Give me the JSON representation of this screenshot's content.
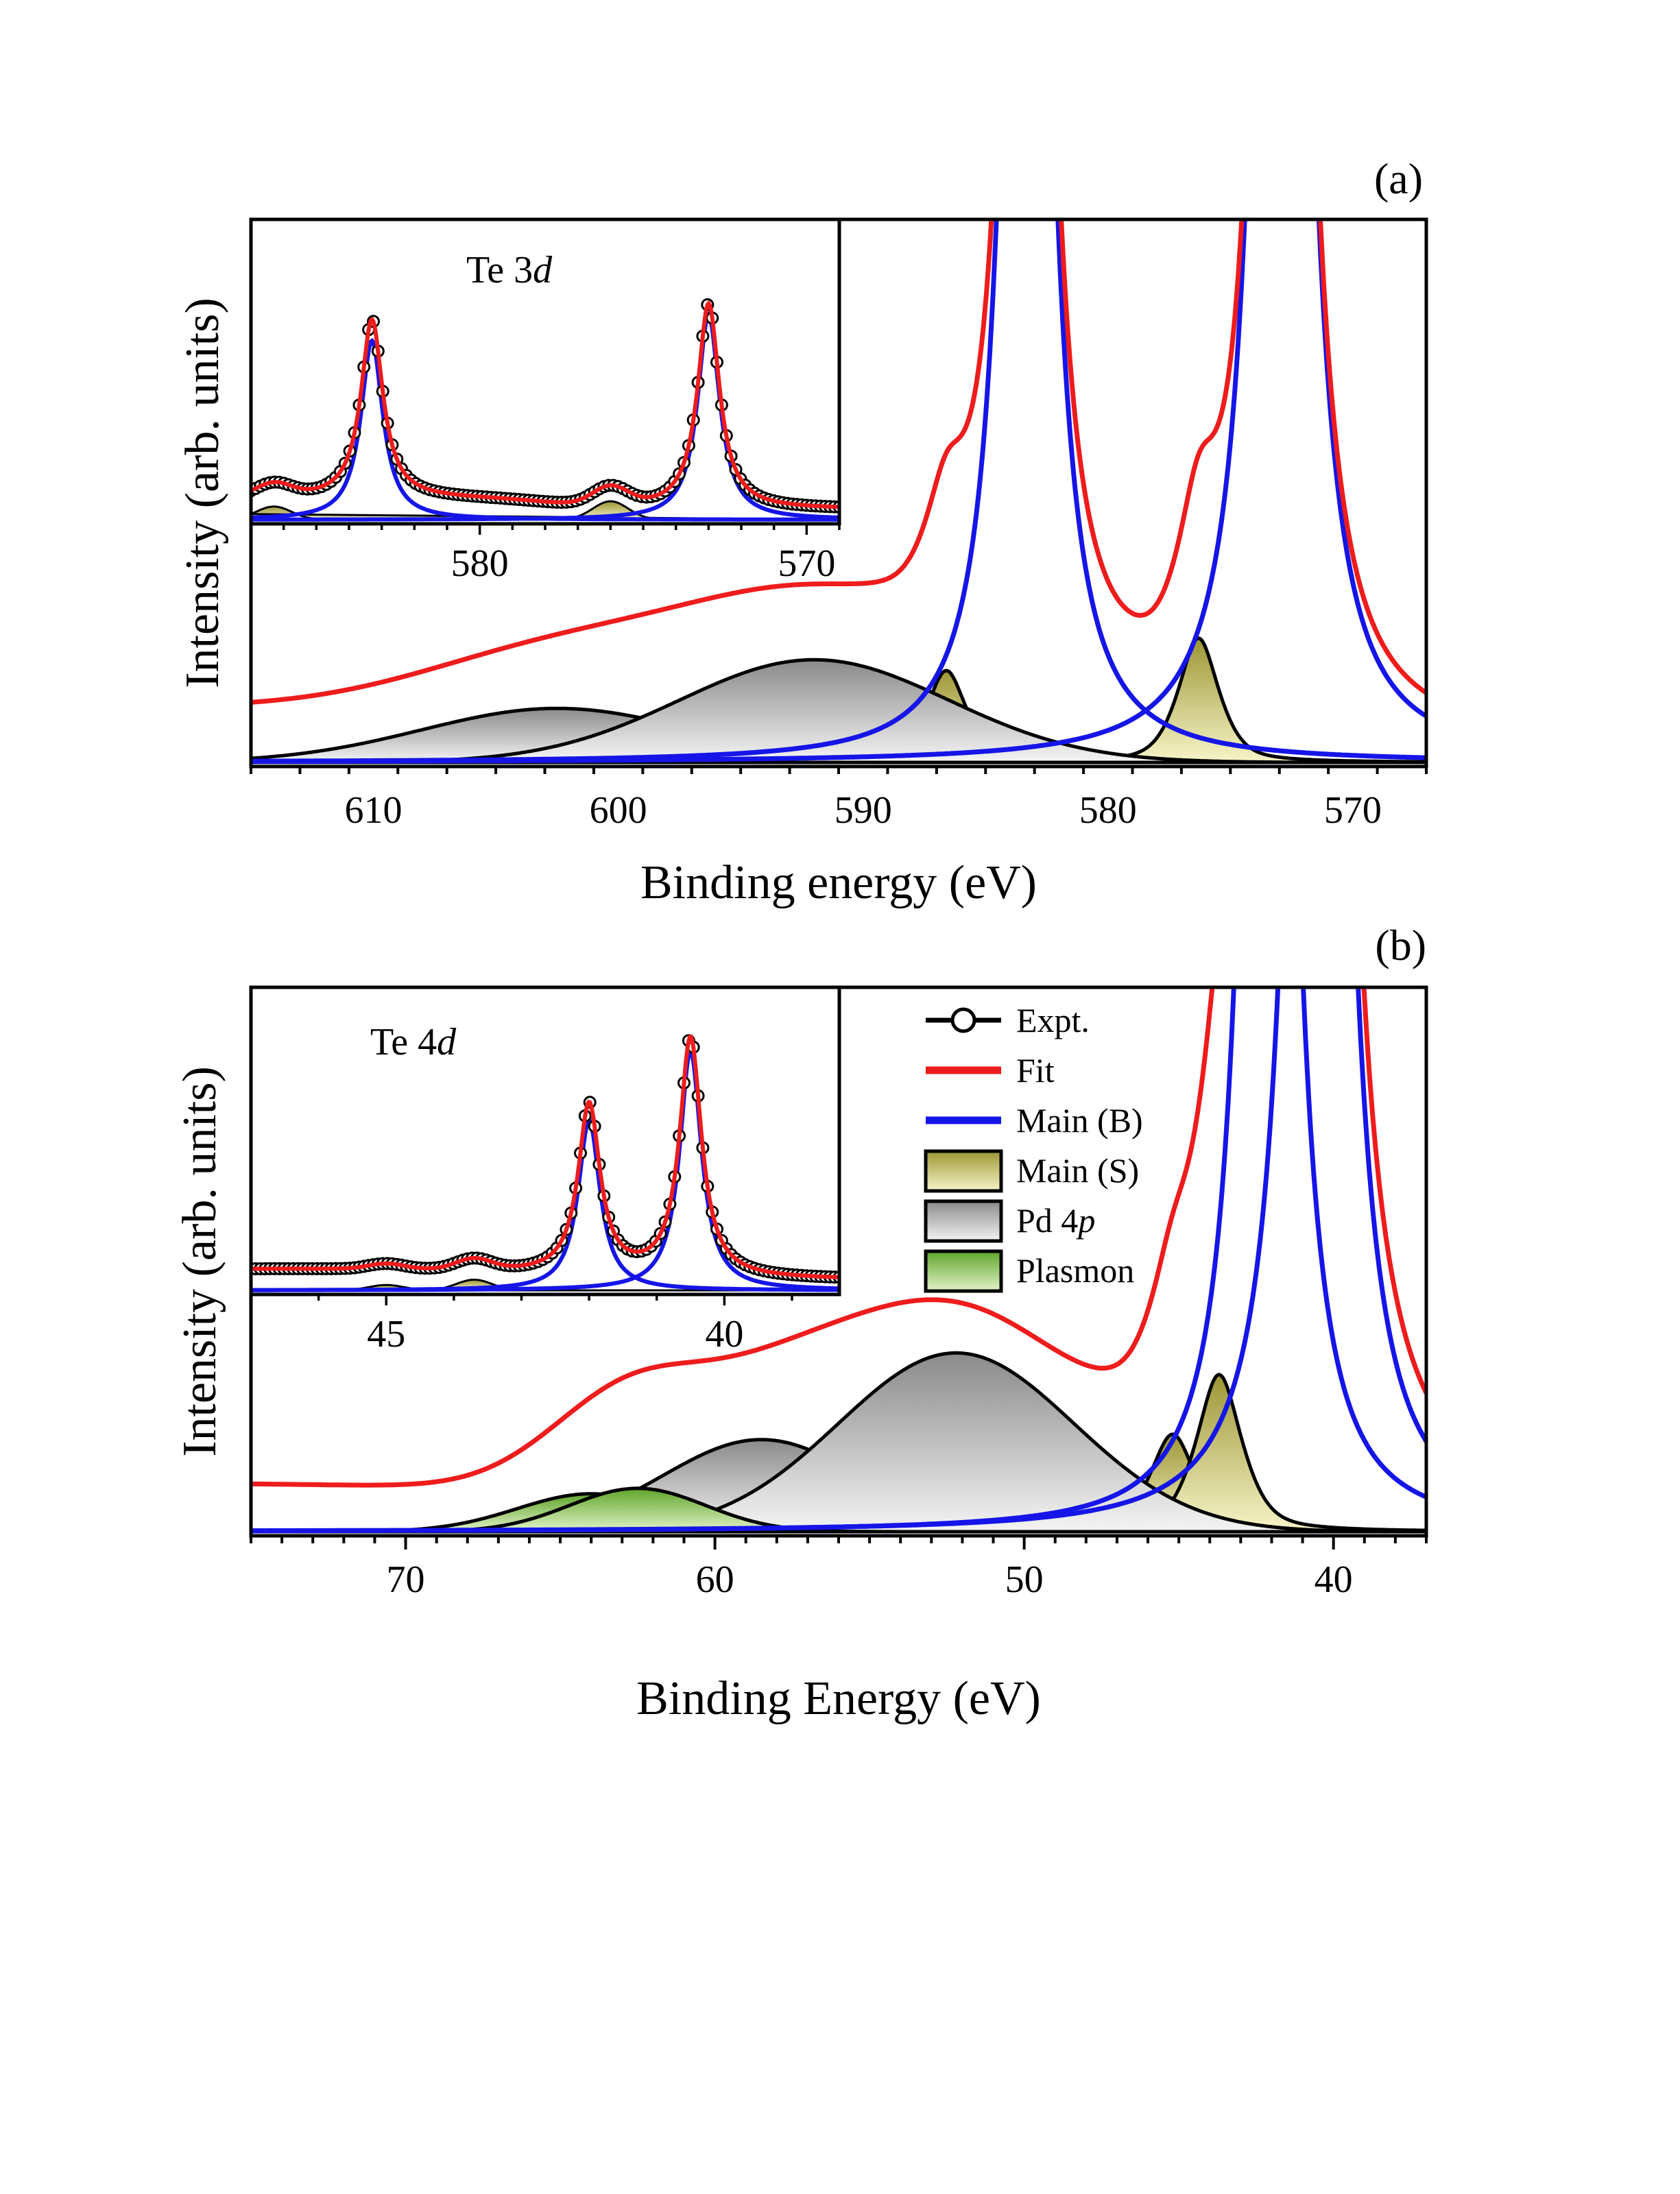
{
  "chart_data": [
    {
      "panel": "(a)",
      "type": "line",
      "xlabel": "Binding energy (eV)",
      "ylabel": "Intensity (arb. units)",
      "xlim": [
        615,
        567
      ],
      "x_reversed": true,
      "x_ticks": [
        610,
        600,
        590,
        580,
        570
      ],
      "y_ticks": [],
      "series": [
        {
          "name": "Main (B)",
          "kind": "voigt",
          "peaks": [
            {
              "center": 583.3,
              "amp": 3.2,
              "width": 0.85
            },
            {
              "center": 572.9,
              "amp": 4.2,
              "width": 0.85
            }
          ]
        },
        {
          "name": "Main (S)",
          "kind": "filled",
          "peaks": [
            {
              "center": 586.6,
              "amp": 0.17,
              "width": 0.9
            },
            {
              "center": 576.3,
              "amp": 0.23,
              "width": 0.9
            }
          ]
        },
        {
          "name": "Pd 4p",
          "kind": "filled",
          "peaks": [
            {
              "center": 602.5,
              "amp": 0.1,
              "width": 5.5
            },
            {
              "center": 592.0,
              "amp": 0.19,
              "width": 5.5
            }
          ]
        }
      ],
      "background": {
        "left": 0.1,
        "right": 0.03,
        "center": 585.5,
        "step": 0.05
      },
      "ylim": [
        0,
        1.0
      ],
      "inset": {
        "title": "Te 3d",
        "xlim": [
          587,
          569
        ],
        "x_ticks": [
          580,
          570
        ],
        "peaks_main": [
          {
            "center": 583.3,
            "amp": 0.68
          },
          {
            "center": 573.0,
            "amp": 0.78
          }
        ],
        "peaks_sat": [
          {
            "center": 586.3,
            "amp": 0.05
          },
          {
            "center": 576.0,
            "amp": 0.07
          }
        ]
      }
    },
    {
      "panel": "(b)",
      "type": "line",
      "xlabel": "Binding Energy (eV)",
      "ylabel": "Intensity (arb. units)",
      "xlim": [
        75,
        37
      ],
      "x_reversed": true,
      "x_ticks": [
        70,
        60,
        50,
        40
      ],
      "y_ticks": [],
      "series": [
        {
          "name": "Main (B)",
          "kind": "voigt",
          "peaks": [
            {
              "center": 42.1,
              "amp": 4.0,
              "width": 0.65
            },
            {
              "center": 40.5,
              "amp": 5.0,
              "width": 0.65
            }
          ]
        },
        {
          "name": "Main (S)",
          "kind": "filled",
          "peaks": [
            {
              "center": 45.2,
              "amp": 0.18,
              "width": 0.8
            },
            {
              "center": 43.7,
              "amp": 0.29,
              "width": 0.8
            }
          ]
        },
        {
          "name": "Pd 4p",
          "kind": "filled",
          "peaks": [
            {
              "center": 58.5,
              "amp": 0.17,
              "width": 3.2
            },
            {
              "center": 52.2,
              "amp": 0.33,
              "width": 3.8
            }
          ]
        },
        {
          "name": "Plasmon",
          "kind": "filled",
          "peaks": [
            {
              "center": 64.0,
              "amp": 0.07,
              "width": 2.4
            },
            {
              "center": 62.5,
              "amp": 0.08,
              "width": 2.2
            }
          ]
        }
      ],
      "background": {
        "left": 0.09,
        "right": 0.02,
        "center": 60.0,
        "step": 0.05
      },
      "ylim": [
        0,
        1.0
      ],
      "inset": {
        "title": "Te 4d",
        "xlim": [
          47.0,
          38.3
        ],
        "x_ticks": [
          45,
          40
        ],
        "peaks_main": [
          {
            "center": 42.0,
            "amp": 0.64
          },
          {
            "center": 40.5,
            "amp": 0.9
          }
        ],
        "peaks_sat": [
          {
            "center": 45.0,
            "amp": 0.02
          },
          {
            "center": 43.7,
            "amp": 0.04
          }
        ]
      }
    }
  ],
  "legend": [
    {
      "label": "Expt.",
      "kind": "circle-line",
      "color": "#000000"
    },
    {
      "label": "Fit",
      "kind": "line",
      "color": "#ee1c1c"
    },
    {
      "label": "Main (B)",
      "kind": "line",
      "color": "#1515e8"
    },
    {
      "label": "Main (S)",
      "kind": "box",
      "color": "#c9c46a"
    },
    {
      "label": "Pd 4p",
      "kind": "box",
      "color": "#a8a8a8"
    },
    {
      "label": "Plasmon",
      "kind": "box",
      "color": "#7fbf3a"
    }
  ],
  "colors": {
    "expt": "#000000",
    "fit": "#ee1c1c",
    "main_b": "#1515e8",
    "main_s_dark": "#9c9635",
    "main_s_light": "#f7f4c8",
    "pd4p_dark": "#8a8a8a",
    "pd4p_light": "#f4f4f4",
    "plasmon_dark": "#5fa52a",
    "plasmon_light": "#e3f3c8"
  }
}
